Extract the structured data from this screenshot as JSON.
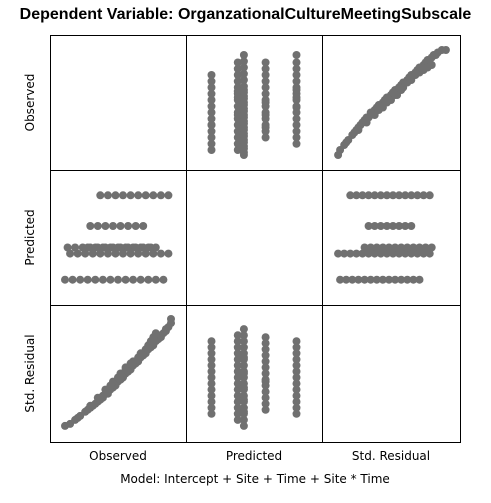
{
  "chart_data": {
    "type": "scatter",
    "title": "Dependent Variable: OrganzationalCultureMeetingSubscale",
    "footnote": "Model: Intercept + Site + Time + Site * Time",
    "matrix_type": "scatterplot-matrix",
    "variables": [
      "Observed",
      "Predicted",
      "Std. Residual"
    ],
    "point_color": "#707070",
    "grid": false,
    "panels": [
      {
        "row": "Observed",
        "col": "Predicted",
        "x": [
          2.55,
          2.55,
          2.55,
          2.55,
          2.55,
          2.55,
          2.55,
          2.55,
          2.55,
          2.55,
          2.55,
          2.55,
          2.55,
          2.55,
          2.72,
          2.72,
          2.72,
          2.72,
          2.72,
          2.72,
          2.72,
          2.72,
          2.72,
          2.72,
          2.72,
          2.72,
          2.72,
          2.72,
          2.72,
          2.72,
          2.72,
          2.72,
          2.76,
          2.76,
          2.76,
          2.76,
          2.76,
          2.76,
          2.76,
          2.76,
          2.76,
          2.76,
          2.76,
          2.76,
          2.76,
          2.76,
          2.76,
          2.76,
          2.76,
          2.76,
          2.76,
          2.76,
          2.76,
          2.76,
          2.76,
          2.76,
          2.76,
          2.76,
          2.76,
          2.76,
          2.9,
          2.9,
          2.9,
          2.9,
          2.9,
          2.9,
          2.9,
          2.9,
          2.9,
          2.9,
          2.9,
          2.9,
          2.9,
          2.9,
          2.9,
          2.9,
          3.1,
          3.1,
          3.1,
          3.1,
          3.1,
          3.1,
          3.1,
          3.1,
          3.1,
          3.1,
          3.1,
          3.1,
          3.1,
          3.1,
          3.1,
          3.1,
          3.1,
          3.1
        ],
        "y": [
          1.2,
          1.45,
          1.7,
          1.95,
          2.2,
          2.45,
          2.7,
          2.95,
          3.2,
          3.45,
          3.7,
          3.95,
          4.2,
          2.2,
          1.2,
          1.45,
          1.7,
          1.95,
          2.2,
          2.45,
          2.7,
          2.95,
          3.2,
          3.45,
          3.7,
          3.95,
          4.2,
          4.45,
          4.7,
          3.3,
          3.55,
          2.6,
          1.0,
          1.25,
          1.5,
          1.75,
          2.0,
          2.25,
          2.5,
          2.75,
          3.0,
          3.25,
          3.5,
          3.75,
          4.0,
          4.25,
          4.5,
          4.75,
          5.0,
          1.1,
          1.35,
          1.6,
          1.85,
          2.1,
          2.35,
          2.6,
          2.85,
          3.1,
          3.35,
          3.6,
          1.7,
          1.95,
          2.2,
          2.45,
          2.7,
          2.95,
          3.2,
          3.45,
          3.7,
          3.95,
          4.2,
          4.45,
          4.7,
          2.1,
          2.6,
          3.1,
          1.45,
          1.7,
          1.95,
          2.2,
          2.45,
          2.7,
          2.95,
          3.2,
          3.45,
          3.7,
          3.95,
          4.2,
          4.45,
          4.7,
          5.0,
          3.6,
          3.3,
          2.9
        ]
      },
      {
        "row": "Observed",
        "col": "Std. Residual",
        "x": [
          -2.6,
          -2.5,
          -2.3,
          -2.2,
          -2.1,
          -1.9,
          -1.8,
          -1.7,
          -1.6,
          -1.5,
          -1.4,
          -1.3,
          -1.2,
          -1.1,
          -1.0,
          -0.9,
          -0.8,
          -0.7,
          -0.6,
          -0.5,
          -0.4,
          -0.3,
          -0.2,
          -0.1,
          0.0,
          0.1,
          0.2,
          0.3,
          0.4,
          0.5,
          0.6,
          0.7,
          0.8,
          0.9,
          1.0,
          1.1,
          1.2,
          1.3,
          1.4,
          1.5,
          1.6,
          1.7,
          1.8,
          1.9,
          2.0,
          2.1,
          2.2,
          2.3,
          2.5,
          2.7,
          -1.6,
          -1.2,
          -0.8,
          -0.4,
          0.0,
          0.3,
          0.6,
          1.0,
          1.4,
          1.8,
          -0.6,
          -0.2,
          0.2,
          0.5,
          0.8,
          1.2,
          1.6,
          2.0,
          -1.0,
          -0.3,
          0.1,
          0.4,
          0.9,
          1.5
        ],
        "y": [
          1.0,
          1.2,
          1.4,
          1.5,
          1.6,
          1.8,
          1.9,
          2.0,
          2.1,
          2.2,
          2.3,
          2.4,
          2.5,
          2.5,
          2.6,
          2.7,
          2.8,
          2.9,
          3.0,
          3.0,
          3.1,
          3.2,
          3.3,
          3.3,
          3.4,
          3.5,
          3.6,
          3.6,
          3.7,
          3.8,
          3.9,
          3.9,
          4.0,
          4.1,
          4.2,
          4.2,
          4.3,
          4.4,
          4.5,
          4.5,
          4.6,
          4.7,
          4.8,
          4.8,
          4.9,
          5.0,
          5.0,
          5.1,
          5.2,
          5.2,
          2.0,
          2.3,
          2.6,
          2.9,
          3.2,
          3.4,
          3.7,
          4.0,
          4.3,
          4.5,
          2.8,
          3.1,
          3.4,
          3.6,
          3.9,
          4.2,
          4.4,
          4.6,
          2.7,
          3.2,
          3.5,
          3.7,
          4.1,
          4.5
        ]
      },
      {
        "row": "Predicted",
        "col": "Observed",
        "x": [
          1.0,
          1.3,
          1.6,
          1.9,
          2.2,
          2.5,
          2.8,
          3.1,
          3.4,
          3.7,
          4.0,
          4.3,
          4.6,
          4.9,
          1.2,
          1.5,
          1.8,
          2.1,
          2.4,
          2.7,
          3.0,
          3.3,
          3.6,
          3.9,
          4.2,
          4.5,
          4.8,
          5.1,
          1.9,
          2.2,
          2.5,
          2.8,
          3.1,
          3.4,
          3.7,
          4.0,
          4.3,
          4.6,
          2.0,
          2.3,
          2.6,
          2.9,
          3.2,
          3.5,
          3.8,
          4.1,
          1.1,
          1.4,
          1.7,
          2.0,
          2.3,
          2.6,
          2.9,
          3.2,
          3.5,
          3.8,
          4.1,
          4.4,
          2.4,
          2.7,
          3.0,
          3.3,
          3.6,
          3.9,
          4.2,
          4.5,
          4.8,
          5.1
        ],
        "y": [
          2.55,
          2.55,
          2.55,
          2.55,
          2.55,
          2.55,
          2.55,
          2.55,
          2.55,
          2.55,
          2.55,
          2.55,
          2.55,
          2.55,
          2.72,
          2.72,
          2.72,
          2.72,
          2.72,
          2.72,
          2.72,
          2.72,
          2.72,
          2.72,
          2.72,
          2.72,
          2.72,
          2.72,
          2.76,
          2.76,
          2.76,
          2.76,
          2.76,
          2.76,
          2.76,
          2.76,
          2.76,
          2.76,
          2.9,
          2.9,
          2.9,
          2.9,
          2.9,
          2.9,
          2.9,
          2.9,
          2.76,
          2.76,
          2.76,
          2.76,
          2.76,
          2.76,
          2.76,
          2.76,
          2.76,
          2.76,
          2.76,
          2.76,
          3.1,
          3.1,
          3.1,
          3.1,
          3.1,
          3.1,
          3.1,
          3.1,
          3.1,
          3.1
        ]
      },
      {
        "row": "Predicted",
        "col": "Std. Residual",
        "x": [
          -2.5,
          -2.2,
          -1.9,
          -1.6,
          -1.3,
          -1.0,
          -0.7,
          -0.4,
          -0.1,
          0.2,
          0.5,
          0.8,
          1.1,
          1.4,
          -2.6,
          -2.3,
          -2.0,
          -1.7,
          -1.4,
          -1.1,
          -0.8,
          -0.5,
          -0.2,
          0.1,
          0.4,
          0.7,
          1.0,
          1.3,
          1.6,
          1.9,
          -1.3,
          -1.0,
          -0.7,
          -0.4,
          -0.1,
          0.2,
          0.5,
          0.8,
          1.1,
          1.4,
          1.7,
          2.0,
          -1.1,
          -0.8,
          -0.5,
          -0.2,
          0.1,
          0.4,
          0.7,
          1.0,
          -2.0,
          -1.7,
          -1.4,
          -1.1,
          -0.8,
          -0.5,
          -0.2,
          0.1,
          0.4,
          0.7,
          1.0,
          1.3,
          1.6,
          1.9
        ],
        "y": [
          2.55,
          2.55,
          2.55,
          2.55,
          2.55,
          2.55,
          2.55,
          2.55,
          2.55,
          2.55,
          2.55,
          2.55,
          2.55,
          2.55,
          2.72,
          2.72,
          2.72,
          2.72,
          2.72,
          2.72,
          2.72,
          2.72,
          2.72,
          2.72,
          2.72,
          2.72,
          2.72,
          2.72,
          2.72,
          2.72,
          2.76,
          2.76,
          2.76,
          2.76,
          2.76,
          2.76,
          2.76,
          2.76,
          2.76,
          2.76,
          2.76,
          2.76,
          2.9,
          2.9,
          2.9,
          2.9,
          2.9,
          2.9,
          2.9,
          2.9,
          3.1,
          3.1,
          3.1,
          3.1,
          3.1,
          3.1,
          3.1,
          3.1,
          3.1,
          3.1,
          3.1,
          3.1,
          3.1,
          3.1
        ]
      },
      {
        "row": "Std. Residual",
        "col": "Observed",
        "x": [
          1.0,
          1.2,
          1.4,
          1.5,
          1.6,
          1.8,
          1.9,
          2.0,
          2.1,
          2.2,
          2.3,
          2.4,
          2.5,
          2.5,
          2.6,
          2.7,
          2.8,
          2.9,
          3.0,
          3.0,
          3.1,
          3.2,
          3.3,
          3.3,
          3.4,
          3.5,
          3.6,
          3.6,
          3.7,
          3.8,
          3.9,
          3.9,
          4.0,
          4.1,
          4.2,
          4.2,
          4.3,
          4.4,
          4.5,
          4.5,
          4.6,
          4.7,
          4.8,
          4.8,
          4.9,
          5.0,
          5.0,
          5.1,
          5.2,
          5.2,
          2.0,
          2.3,
          2.6,
          2.9,
          3.2,
          3.4,
          3.7,
          4.0,
          4.3,
          4.5,
          2.8,
          3.1,
          3.4,
          3.6,
          3.9,
          4.2,
          4.4,
          4.6,
          2.7,
          3.2,
          3.5,
          3.7,
          4.1,
          4.5
        ],
        "y": [
          -2.6,
          -2.5,
          -2.3,
          -2.2,
          -2.1,
          -1.9,
          -1.8,
          -1.7,
          -1.6,
          -1.5,
          -1.4,
          -1.3,
          -1.2,
          -1.1,
          -1.0,
          -0.9,
          -0.8,
          -0.7,
          -0.6,
          -0.5,
          -0.4,
          -0.3,
          -0.2,
          -0.1,
          0.0,
          0.1,
          0.2,
          0.3,
          0.4,
          0.5,
          0.6,
          0.7,
          0.8,
          0.9,
          1.0,
          1.1,
          1.2,
          1.3,
          1.4,
          1.5,
          1.6,
          1.7,
          1.8,
          1.9,
          2.0,
          2.1,
          2.2,
          2.3,
          2.5,
          2.7,
          -1.6,
          -1.2,
          -0.8,
          -0.4,
          0.0,
          0.3,
          0.6,
          1.0,
          1.4,
          1.8,
          -0.6,
          -0.2,
          0.2,
          0.5,
          0.8,
          1.2,
          1.6,
          2.0,
          -1.0,
          -0.3,
          0.1,
          0.4,
          0.9,
          1.5
        ]
      },
      {
        "row": "Std. Residual",
        "col": "Predicted",
        "x": [
          2.55,
          2.55,
          2.55,
          2.55,
          2.55,
          2.55,
          2.55,
          2.55,
          2.55,
          2.55,
          2.55,
          2.55,
          2.55,
          2.72,
          2.72,
          2.72,
          2.72,
          2.72,
          2.72,
          2.72,
          2.72,
          2.72,
          2.72,
          2.72,
          2.72,
          2.72,
          2.72,
          2.72,
          2.76,
          2.76,
          2.76,
          2.76,
          2.76,
          2.76,
          2.76,
          2.76,
          2.76,
          2.76,
          2.76,
          2.76,
          2.76,
          2.76,
          2.76,
          2.76,
          2.76,
          2.76,
          2.76,
          2.76,
          2.76,
          2.76,
          2.9,
          2.9,
          2.9,
          2.9,
          2.9,
          2.9,
          2.9,
          2.9,
          2.9,
          2.9,
          2.9,
          2.9,
          2.9,
          2.9,
          3.1,
          3.1,
          3.1,
          3.1,
          3.1,
          3.1,
          3.1,
          3.1,
          3.1,
          3.1,
          3.1,
          3.1,
          3.1
        ],
        "y": [
          -2.0,
          -1.7,
          -1.4,
          -1.1,
          -0.8,
          -0.5,
          -0.2,
          0.1,
          0.4,
          0.7,
          1.0,
          1.3,
          1.6,
          -2.3,
          -2.0,
          -1.7,
          -1.4,
          -1.1,
          -0.8,
          -0.5,
          -0.2,
          0.1,
          0.4,
          0.7,
          1.0,
          1.3,
          1.6,
          1.9,
          -2.6,
          -2.3,
          -2.0,
          -1.7,
          -1.4,
          -1.1,
          -0.8,
          -0.5,
          -0.2,
          0.1,
          0.4,
          0.7,
          1.0,
          1.3,
          1.6,
          1.9,
          2.2,
          -1.9,
          -1.3,
          -0.7,
          0.0,
          0.8,
          -1.8,
          -1.5,
          -1.2,
          -0.9,
          -0.6,
          -0.3,
          0.0,
          0.3,
          0.6,
          0.9,
          1.2,
          1.5,
          1.8,
          -0.4,
          -2.0,
          -1.7,
          -1.4,
          -1.1,
          -0.8,
          -0.5,
          -0.2,
          0.1,
          0.4,
          0.7,
          1.0,
          1.3,
          1.6
        ]
      }
    ],
    "ranges": {
      "Observed": [
        0.8,
        5.4
      ],
      "Predicted": [
        2.45,
        3.2
      ],
      "Std. Residual": [
        -2.9,
        2.9
      ]
    }
  }
}
